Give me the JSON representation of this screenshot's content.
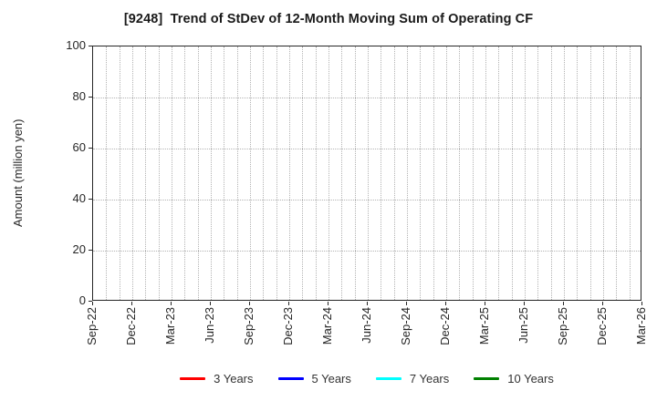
{
  "chart_data": {
    "type": "line",
    "title": "[9248]  Trend of StDev of 12-Month Moving Sum of Operating CF",
    "xlabel": "",
    "ylabel": "Amount (million yen)",
    "ylim": [
      0,
      100
    ],
    "yticks": [
      0,
      20,
      40,
      60,
      80,
      100
    ],
    "x_tick_labels": [
      "Sep-22",
      "Dec-22",
      "Mar-23",
      "Jun-23",
      "Sep-23",
      "Dec-23",
      "Mar-24",
      "Jun-24",
      "Sep-24",
      "Dec-24",
      "Mar-25",
      "Jun-25",
      "Sep-25",
      "Dec-25",
      "Mar-26"
    ],
    "x_range_months": 42,
    "x_gridline_interval_months": 1,
    "x_label_interval_months": 3,
    "grid": true,
    "grid_style": "dotted",
    "grid_color": "#b3b3b3",
    "axis_color": "#262626",
    "legend_position": "bottom",
    "series": [
      {
        "name": "3 Years",
        "color": "#ff0000",
        "values": []
      },
      {
        "name": "5 Years",
        "color": "#0000ff",
        "values": []
      },
      {
        "name": "7 Years",
        "color": "#00ffff",
        "values": []
      },
      {
        "name": "10 Years",
        "color": "#008000",
        "values": []
      }
    ]
  }
}
